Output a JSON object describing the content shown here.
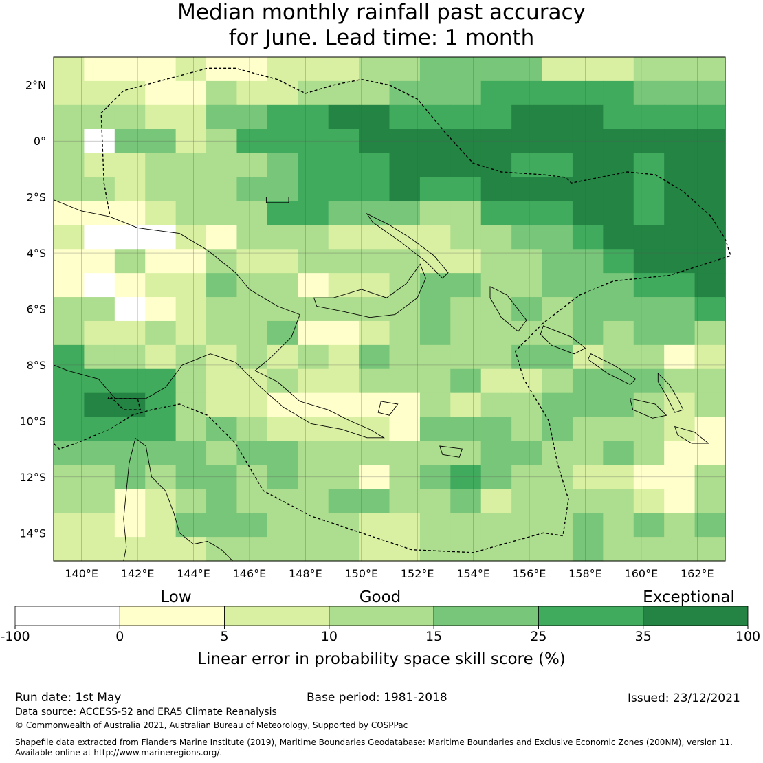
{
  "title": {
    "line1": "Median monthly rainfall past accuracy",
    "line2": "for June. Lead time: 1 month"
  },
  "map": {
    "lon_range": [
      139,
      163
    ],
    "lat_range": [
      -15,
      3
    ],
    "lon_ticks": [
      140,
      142,
      144,
      146,
      148,
      150,
      152,
      154,
      156,
      158,
      160,
      162
    ],
    "lon_tick_labels": [
      "140°E",
      "142°E",
      "144°E",
      "146°E",
      "148°E",
      "150°E",
      "152°E",
      "154°E",
      "156°E",
      "158°E",
      "160°E",
      "162°E"
    ],
    "lat_ticks": [
      2,
      0,
      -2,
      -4,
      -6,
      -8,
      -10,
      -12,
      -14
    ],
    "lat_tick_labels": [
      "2°N",
      "0°",
      "2°S",
      "4°S",
      "6°S",
      "8°S",
      "10°S",
      "12°S",
      "14°S"
    ],
    "grid": true,
    "cell_deg": 0.8,
    "skill_class_colors": [
      "#ffffff",
      "#ffffcc",
      "#d9f0a3",
      "#addd8e",
      "#78c679",
      "#41ab5d",
      "#238443"
    ],
    "skill_grid_rows_north_to_south": [
      "2111211222334444222333",
      "2221132233344455555444",
      "3332244556655556665555",
      "3044235555666666666666",
      "3223333455566665566566",
      "3323334455565566666566",
      "1112333554443355566566",
      "2000213332222334456666",
      "1131132233332233445666",
      "1012243312234433444556",
      "3301233333334334344445",
      "3223233411234333343443",
      "5332323232433334423312",
      "5555322322333422344433",
      "5665322111113233444323",
      "5555343222214443433321",
      "4444434433333344334311",
      "3343443433134543322113",
      "3312343334433423333213",
      "2212444333223333343434",
      "2222233333223333343333"
    ],
    "coastline_color": "#000000",
    "boundary_style": "dashed",
    "data_extent_note": "skill score field"
  },
  "colorbar": {
    "category_labels": [
      "Low",
      "Good",
      "Exceptional"
    ],
    "boundaries": [
      "-100",
      "0",
      "5",
      "10",
      "15",
      "25",
      "35",
      "100"
    ],
    "axis_label": "Linear error in probability space skill score (%)"
  },
  "footer": {
    "run_date": "Run date: 1st May",
    "base_period": "Base period: 1981-2018",
    "issued": "Issued: 23/12/2021",
    "data_source": "Data source: ACCESS-S2 and ERA5 Climate Reanalysis",
    "copyright": "© Commonwealth of Australia 2021, Australian Bureau of Meteorology, Supported by COSPPac",
    "shapefile_line1": "Shapefile data extracted from Flanders Marine Institute (2019), Maritime Boundaries Geodatabase: Maritime Boundaries and Exclusive Economic Zones (200NM), version 11.",
    "shapefile_line2": "Available online at http://www.marineregions.org/."
  }
}
